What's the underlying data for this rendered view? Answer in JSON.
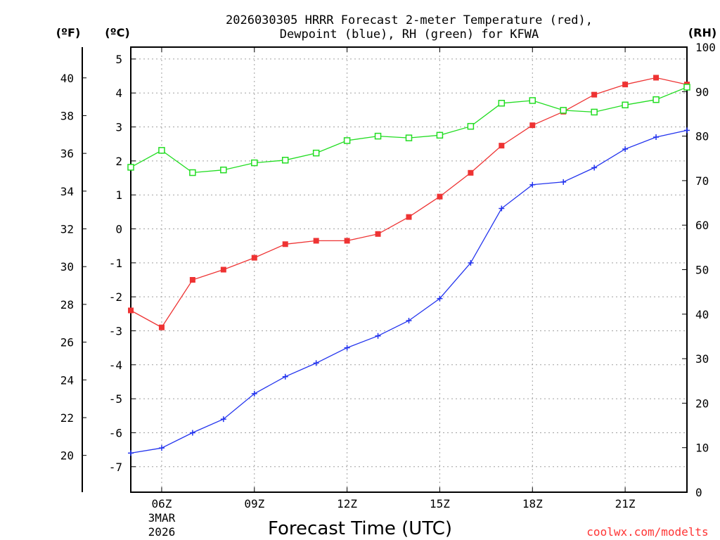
{
  "chart_data": {
    "type": "line",
    "title": "2026030305 HRRR Forecast 2-meter Temperature (red),",
    "subtitle": "Dewpoint (blue), RH (green) for KFWA",
    "xlabel": "Forecast Time (UTC)",
    "credit": "coolwx.com/modelts",
    "unit_labels": {
      "fahrenheit": "(ºF)",
      "celsius": "(ºC)",
      "rh": "(RH)"
    },
    "x_hours": [
      5,
      6,
      7,
      8,
      9,
      10,
      11,
      12,
      13,
      14,
      15,
      16,
      17,
      18,
      19,
      20,
      21,
      22,
      23
    ],
    "xlim": [
      5,
      23
    ],
    "x_ticks": [
      {
        "hour": 6,
        "label": "06Z",
        "sub1": "3MAR",
        "sub2": "2026"
      },
      {
        "hour": 9,
        "label": "09Z"
      },
      {
        "hour": 12,
        "label": "12Z"
      },
      {
        "hour": 15,
        "label": "15Z"
      },
      {
        "hour": 18,
        "label": "18Z"
      },
      {
        "hour": 21,
        "label": "21Z"
      }
    ],
    "celsius_axis": {
      "ylim": [
        -7.75,
        5.35
      ],
      "ticks": [
        5,
        4,
        3,
        2,
        1,
        0,
        -1,
        -2,
        -3,
        -4,
        -5,
        -6,
        -7
      ]
    },
    "fahrenheit_axis": {
      "ticks": [
        40,
        38,
        36,
        34,
        32,
        30,
        28,
        26,
        24,
        22,
        20
      ]
    },
    "rh_axis": {
      "ylim": [
        0,
        100
      ],
      "ticks": [
        100,
        90,
        80,
        70,
        60,
        50,
        40,
        30,
        20,
        10,
        0
      ]
    },
    "series": [
      {
        "name": "2-meter Temperature",
        "unit": "C",
        "color": "#ee3333",
        "marker": "filled-square",
        "values": [
          -2.4,
          -2.9,
          -1.5,
          -1.2,
          -0.85,
          -0.45,
          -0.35,
          -0.35,
          -0.15,
          0.35,
          0.95,
          1.65,
          2.45,
          3.05,
          3.45,
          3.95,
          4.25,
          4.45,
          4.25
        ]
      },
      {
        "name": "Dewpoint",
        "unit": "C",
        "color": "#2233ee",
        "marker": "plus",
        "values": [
          -6.6,
          -6.45,
          -6.0,
          -5.6,
          -4.85,
          -4.35,
          -3.95,
          -3.5,
          -3.15,
          -2.7,
          -2.05,
          -1.0,
          0.6,
          1.3,
          1.38,
          1.8,
          2.35,
          2.7,
          2.9
        ]
      },
      {
        "name": "Relative Humidity",
        "unit": "%",
        "color": "#22dd22",
        "marker": "open-square",
        "values": [
          73,
          76.8,
          71.8,
          72.4,
          74,
          74.6,
          76.2,
          79,
          80,
          79.6,
          80.2,
          82.2,
          87.4,
          88,
          85.8,
          85.4,
          87,
          88.2,
          91
        ]
      }
    ]
  }
}
